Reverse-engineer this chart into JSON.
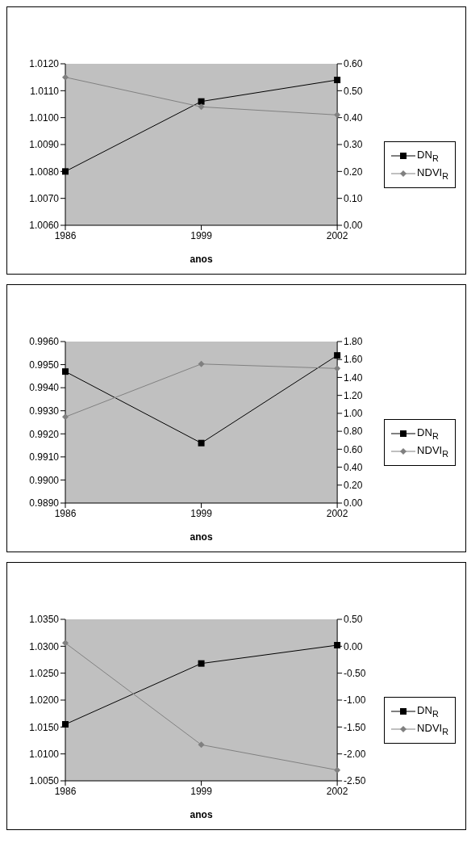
{
  "chart_data": [
    {
      "type": "line",
      "xlabel": "anos",
      "categories": [
        "1986",
        "1999",
        "2002"
      ],
      "legend": "right",
      "grid": false,
      "series": [
        {
          "name": "DN$_{R}$",
          "color": "#000000",
          "marker": "square",
          "values": [
            1.008,
            1.0106,
            1.0114
          ]
        },
        {
          "name": "NDVI$_{R}$",
          "color": "#808080",
          "marker": "diamond",
          "axis": "y2",
          "values": [
            0.55,
            0.44,
            0.41
          ]
        }
      ],
      "ylim": [
        1.006,
        1.012
      ],
      "yticks": [
        {
          "value": 1.006,
          "label": "1.0060"
        },
        {
          "value": 1.007,
          "label": "1.0070"
        },
        {
          "value": 1.008,
          "label": "1.0080"
        },
        {
          "value": 1.009,
          "label": "1.0090"
        },
        {
          "value": 1.01,
          "label": "1.0100"
        },
        {
          "value": 1.011,
          "label": "1.0110"
        },
        {
          "value": 1.012,
          "label": "1.0120"
        }
      ],
      "y2lim": [
        0,
        0.6
      ],
      "y2ticks": [
        {
          "value": 0,
          "label": "0.00"
        },
        {
          "value": 0.1,
          "label": "0.10"
        },
        {
          "value": 0.2,
          "label": "0.20"
        },
        {
          "value": 0.3,
          "label": "0.30"
        },
        {
          "value": 0.4,
          "label": "0.40"
        },
        {
          "value": 0.5,
          "label": "0.50"
        },
        {
          "value": 0.6,
          "label": "0.60"
        }
      ]
    },
    {
      "type": "line",
      "xlabel": "anos",
      "categories": [
        "1986",
        "1999",
        "2002"
      ],
      "legend": "right",
      "grid": false,
      "series": [
        {
          "name": "DN$_{R}$",
          "color": "#000000",
          "marker": "square",
          "values": [
            0.9947,
            0.9916,
            0.9954
          ]
        },
        {
          "name": "NDVI$_{R}$",
          "color": "#808080",
          "marker": "diamond",
          "axis": "y2",
          "values": [
            0.96,
            1.55,
            1.5
          ]
        }
      ],
      "ylim": [
        0.989,
        0.996
      ],
      "yticks": [
        {
          "value": 0.989,
          "label": "0.9890"
        },
        {
          "value": 0.99,
          "label": "0.9900"
        },
        {
          "value": 0.991,
          "label": "0.9910"
        },
        {
          "value": 0.992,
          "label": "0.9920"
        },
        {
          "value": 0.993,
          "label": "0.9930"
        },
        {
          "value": 0.994,
          "label": "0.9940"
        },
        {
          "value": 0.995,
          "label": "0.9950"
        },
        {
          "value": 0.996,
          "label": "0.9960"
        }
      ],
      "y2lim": [
        0,
        1.8
      ],
      "y2ticks": [
        {
          "value": 0,
          "label": "0.00"
        },
        {
          "value": 0.2,
          "label": "0.20"
        },
        {
          "value": 0.4,
          "label": "0.40"
        },
        {
          "value": 0.6,
          "label": "0.60"
        },
        {
          "value": 0.8,
          "label": "0.80"
        },
        {
          "value": 1,
          "label": "1.00"
        },
        {
          "value": 1.2,
          "label": "1.20"
        },
        {
          "value": 1.4,
          "label": "1.40"
        },
        {
          "value": 1.6,
          "label": "1.60"
        },
        {
          "value": 1.8,
          "label": "1.80"
        }
      ]
    },
    {
      "type": "line",
      "xlabel": "anos",
      "categories": [
        "1986",
        "1999",
        "2002"
      ],
      "legend": "right",
      "grid": false,
      "series": [
        {
          "name": "DN$_{R}$",
          "color": "#000000",
          "marker": "square",
          "values": [
            1.0155,
            1.0268,
            1.0302
          ]
        },
        {
          "name": "NDVI$_{R}$",
          "color": "#808080",
          "marker": "diamond",
          "axis": "y2",
          "values": [
            0.06,
            -1.83,
            -2.3
          ]
        }
      ],
      "ylim": [
        1.005,
        1.035
      ],
      "yticks": [
        {
          "value": 1.005,
          "label": "1.0050"
        },
        {
          "value": 1.01,
          "label": "1.0100"
        },
        {
          "value": 1.015,
          "label": "1.0150"
        },
        {
          "value": 1.02,
          "label": "1.0200"
        },
        {
          "value": 1.025,
          "label": "1.0250"
        },
        {
          "value": 1.03,
          "label": "1.0300"
        },
        {
          "value": 1.035,
          "label": "1.0350"
        }
      ],
      "y2lim": [
        -2.5,
        0.5
      ],
      "y2ticks": [
        {
          "value": -2.5,
          "label": "-2.50"
        },
        {
          "value": -2,
          "label": "-2.00"
        },
        {
          "value": -1.5,
          "label": "-1.50"
        },
        {
          "value": -1,
          "label": "-1.00"
        },
        {
          "value": -0.5,
          "label": "-0.50"
        },
        {
          "value": 0,
          "label": "0.00"
        },
        {
          "value": 0.5,
          "label": "0.50"
        }
      ]
    }
  ]
}
